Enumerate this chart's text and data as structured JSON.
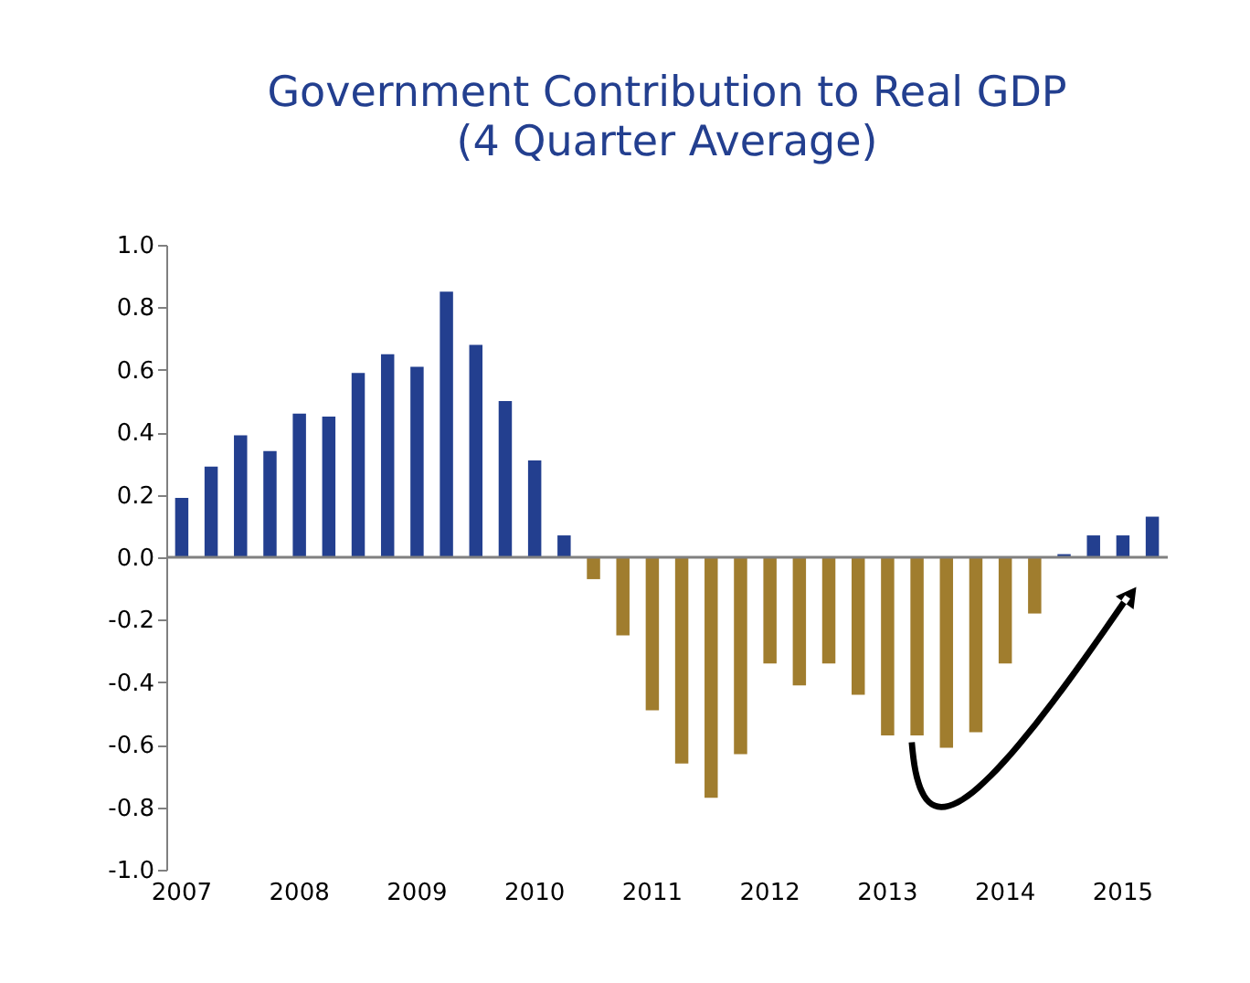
{
  "chart_data": {
    "type": "bar",
    "title": "Government Contribution to Real GDP",
    "subtitle": "(4 Quarter Average)",
    "categories": [
      "2007",
      null,
      null,
      null,
      "2008",
      null,
      null,
      null,
      "2009",
      null,
      null,
      null,
      "2010",
      null,
      null,
      null,
      "2011",
      null,
      null,
      null,
      "2012",
      null,
      null,
      null,
      "2013",
      null,
      null,
      null,
      "2014",
      null,
      null,
      null,
      "2015",
      null
    ],
    "values": [
      0.19,
      0.29,
      0.39,
      0.34,
      0.46,
      0.45,
      0.59,
      0.65,
      0.61,
      0.85,
      0.68,
      0.5,
      0.31,
      0.07,
      -0.07,
      -0.25,
      -0.49,
      -0.66,
      -0.77,
      -0.63,
      -0.34,
      -0.41,
      -0.34,
      -0.44,
      -0.57,
      -0.57,
      -0.61,
      -0.56,
      -0.34,
      -0.18,
      0.01,
      0.07,
      0.07,
      0.13
    ],
    "colors": [
      "#233f8f",
      "#233f8f",
      "#233f8f",
      "#233f8f",
      "#233f8f",
      "#233f8f",
      "#233f8f",
      "#233f8f",
      "#233f8f",
      "#233f8f",
      "#233f8f",
      "#233f8f",
      "#233f8f",
      "#233f8f",
      "#a07d2e",
      "#a07d2e",
      "#a07d2e",
      "#a07d2e",
      "#a07d2e",
      "#a07d2e",
      "#a07d2e",
      "#a07d2e",
      "#a07d2e",
      "#a07d2e",
      "#a07d2e",
      "#a07d2e",
      "#a07d2e",
      "#a07d2e",
      "#a07d2e",
      "#a07d2e",
      "#233f8f",
      "#233f8f",
      "#233f8f",
      "#233f8f"
    ],
    "ylim": [
      -1.0,
      1.0
    ],
    "yticks": [
      {
        "value": -1.0,
        "label": "-1.0"
      },
      {
        "value": -0.8,
        "label": "-0.8"
      },
      {
        "value": -0.6,
        "label": "-0.6"
      },
      {
        "value": -0.4,
        "label": "-0.4"
      },
      {
        "value": -0.2,
        "label": "-0.2"
      },
      {
        "value": 0,
        "label": "0.0"
      },
      {
        "value": 0.2,
        "label": "0.2"
      },
      {
        "value": 0.4,
        "label": "0.4"
      },
      {
        "value": 0.6,
        "label": "0.6"
      },
      {
        "value": 0.8,
        "label": "0.8"
      },
      {
        "value": 1.0,
        "label": "1.0"
      }
    ],
    "ref_lines": [
      {
        "axis": "y",
        "value": 0,
        "color": "#808080"
      }
    ],
    "grid": false
  }
}
